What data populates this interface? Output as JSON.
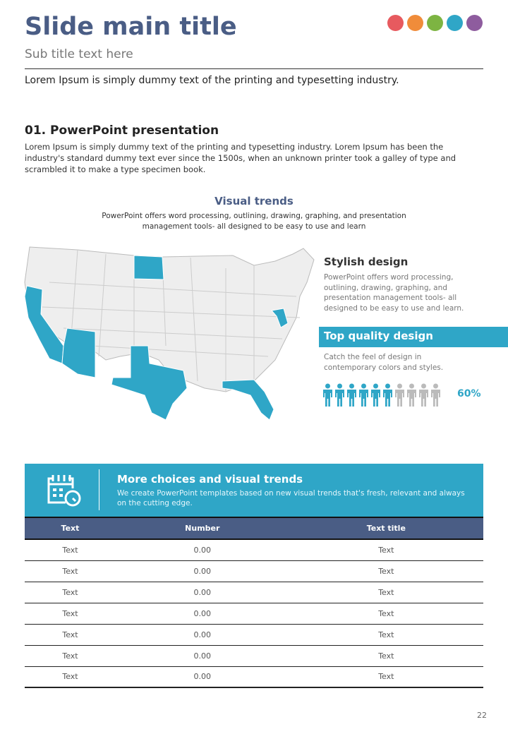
{
  "header": {
    "title": "Slide main title",
    "subtitle": "Sub title text here",
    "dot_colors": [
      "#e75a5f",
      "#f08c3a",
      "#7db442",
      "#2fa6c7",
      "#8e5c9e"
    ]
  },
  "intro": "Lorem Ipsum is simply dummy text of the printing and typesetting industry.",
  "section": {
    "title": "01. PowerPoint presentation",
    "body": "Lorem Ipsum is simply dummy text of the printing and typesetting industry. Lorem Ipsum has been the industry's standard dummy text ever since the 1500s, when an unknown printer took a galley of type and scrambled it to make a type specimen book."
  },
  "visual": {
    "title": "Visual trends",
    "subtitle": "PowerPoint offers word processing, outlining, drawing, graphing, and presentation management tools- all designed to be easy to use and learn",
    "highlighted_states": [
      "California",
      "Arizona",
      "Texas",
      "North Dakota",
      "Maryland",
      "Florida"
    ]
  },
  "stylish": {
    "title": "Stylish design",
    "body": "PowerPoint offers word processing, outlining, drawing, graphing, and presentation management tools- all designed to be easy to use and learn."
  },
  "quality": {
    "title": "Top quality design",
    "body": "Catch the feel of design in contemporary colors and styles.",
    "percent_label": "60%",
    "filled": 6,
    "total": 10
  },
  "banner": {
    "title": "More choices and visual trends",
    "body": "We create PowerPoint templates based on new visual trends that's fresh, relevant and always on the cutting edge.",
    "icon": "calendar-clock-icon"
  },
  "table": {
    "headers": [
      "Text",
      "Number",
      "Text title"
    ],
    "rows": [
      [
        "Text",
        "0.00",
        "Text"
      ],
      [
        "Text",
        "0.00",
        "Text"
      ],
      [
        "Text",
        "0.00",
        "Text"
      ],
      [
        "Text",
        "0.00",
        "Text"
      ],
      [
        "Text",
        "0.00",
        "Text"
      ],
      [
        "Text",
        "0.00",
        "Text"
      ],
      [
        "Text",
        "0.00",
        "Text"
      ]
    ]
  },
  "page_number": "22",
  "colors": {
    "accent": "#2fa6c7",
    "navy": "#4a5d85"
  }
}
